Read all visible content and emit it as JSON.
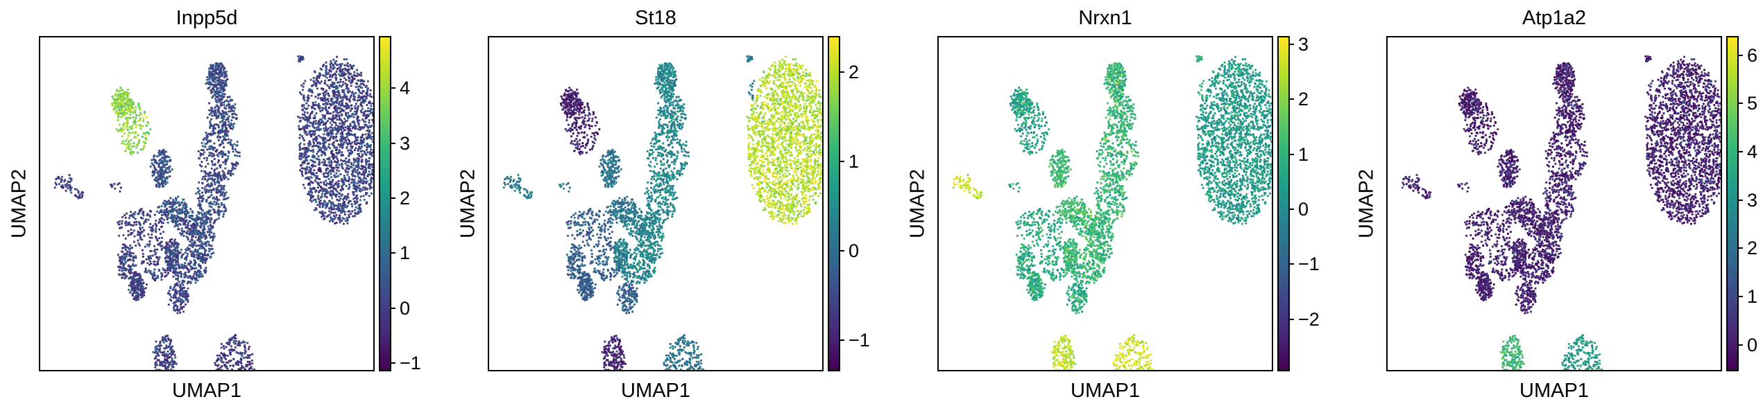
{
  "chart_data": [
    {
      "type": "scatter",
      "title": "Inpp5d",
      "xlabel": "UMAP1",
      "ylabel": "UMAP2",
      "colormap": "viridis",
      "colorbar": {
        "min": -1.15,
        "max": 4.95,
        "ticks": [
          -1,
          0,
          1,
          2,
          3,
          4
        ],
        "tick_labels": [
          "−1",
          "0",
          "1",
          "2",
          "3",
          "4"
        ]
      },
      "cluster_values": {
        "A": 0.1,
        "B": 0.25,
        "C": 3.9,
        "D": 0.4,
        "E": 0.05,
        "F": 0.25,
        "G": 0.0,
        "H": 0.05,
        "I": 0.0,
        "J": 0.1
      }
    },
    {
      "type": "scatter",
      "title": "St18",
      "xlabel": "UMAP1",
      "ylabel": "UMAP2",
      "colormap": "viridis",
      "colorbar": {
        "min": -1.35,
        "max": 2.4,
        "ticks": [
          -1,
          0,
          1,
          2
        ],
        "tick_labels": [
          "−1",
          "0",
          "1",
          "2"
        ]
      },
      "cluster_values": {
        "A": 2.0,
        "B": 0.4,
        "C": -1.0,
        "D": 0.1,
        "E": -0.2,
        "F": 0.3,
        "G": 0.2,
        "H": -1.0,
        "I": 0.1,
        "J": 0.2
      }
    },
    {
      "type": "scatter",
      "title": "Nrxn1",
      "xlabel": "UMAP1",
      "ylabel": "UMAP2",
      "colormap": "viridis",
      "colorbar": {
        "min": -2.95,
        "max": 3.15,
        "ticks": [
          -2,
          -1,
          0,
          1,
          2,
          3
        ],
        "tick_labels": [
          "−2",
          "−1",
          "0",
          "1",
          "2",
          "3"
        ]
      },
      "cluster_values": {
        "A": 0.4,
        "B": 1.1,
        "C": 0.6,
        "D": 1.2,
        "E": 0.8,
        "F": 1.2,
        "G": 2.7,
        "H": 2.6,
        "I": 2.8,
        "J": 1.0
      }
    },
    {
      "type": "scatter",
      "title": "Atp1a2",
      "xlabel": "UMAP1",
      "ylabel": "UMAP2",
      "colormap": "viridis",
      "colorbar": {
        "min": -0.55,
        "max": 6.4,
        "ticks": [
          0,
          1,
          2,
          3,
          4,
          5,
          6
        ],
        "tick_labels": [
          "0",
          "1",
          "2",
          "3",
          "4",
          "5",
          "6"
        ]
      },
      "cluster_values": {
        "A": 0.1,
        "B": 0.1,
        "C": 0.0,
        "D": 0.1,
        "E": 0.1,
        "F": 0.2,
        "G": 0.1,
        "H": 4.2,
        "I": 3.2,
        "J": 0.1
      }
    }
  ]
}
